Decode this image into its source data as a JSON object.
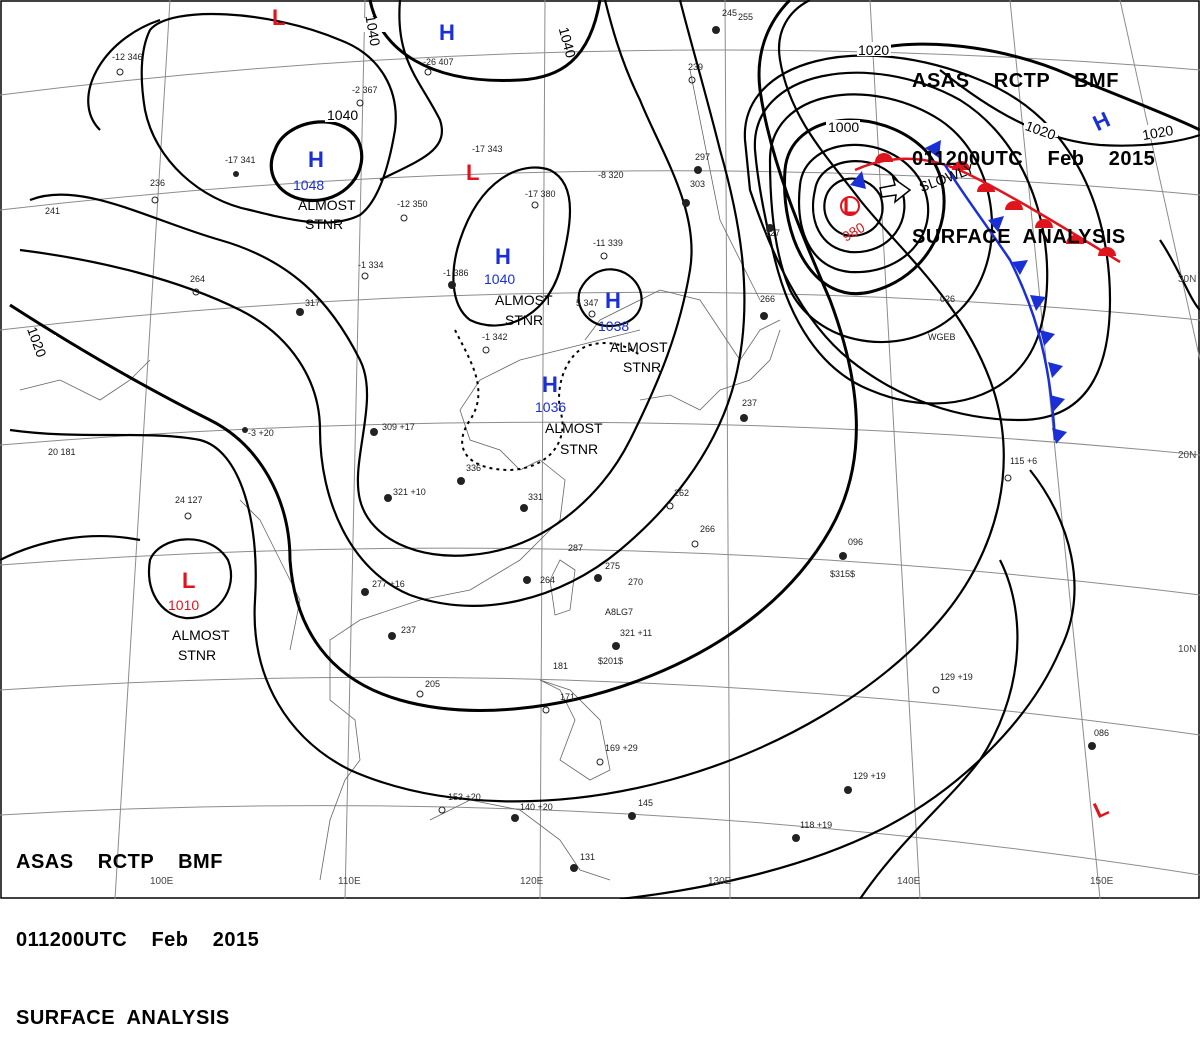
{
  "header": {
    "line1": "ASAS    RCTP    BMF",
    "line2": "011200UTC    Feb    2015",
    "line3": "SURFACE  ANALYSIS"
  },
  "colors": {
    "high": "#1a2fd6",
    "low": "#e0141c",
    "warm_front": "#e0141c",
    "cold_front": "#1a2fd6",
    "isobar": "#000000",
    "grid": "#8c8c8c"
  },
  "grid_labels": {
    "lon": [
      "110E",
      "120E",
      "130E",
      "140E",
      "150E"
    ],
    "lat": [
      "30N",
      "20N",
      "10N"
    ]
  },
  "isobar_labels": [
    "1040",
    "1040",
    "1040",
    "1040",
    "1020",
    "1020",
    "1020",
    "1020",
    "1000"
  ],
  "systems": [
    {
      "type": "H",
      "pressure": "1048",
      "status": "ALMOST",
      "status2": "STNR"
    },
    {
      "type": "H",
      "pressure": "1040",
      "status": "ALMOST",
      "status2": "STNR"
    },
    {
      "type": "H",
      "pressure": "1038",
      "status": "ALMOST",
      "status2": "STNR"
    },
    {
      "type": "H",
      "pressure": "1036",
      "status": "ALMOST",
      "status2": "STNR"
    },
    {
      "type": "L",
      "pressure": "1010",
      "status": "ALMOST",
      "status2": "STNR"
    },
    {
      "type": "L",
      "pressure": "980",
      "status": "SLOWLY",
      "status2": ""
    },
    {
      "type": "H",
      "pressure": "",
      "status": "",
      "status2": ""
    },
    {
      "type": "H",
      "pressure": "",
      "status": "",
      "status2": ""
    },
    {
      "type": "L",
      "pressure": "",
      "status": "",
      "status2": ""
    },
    {
      "type": "L",
      "pressure": "",
      "status": "",
      "status2": ""
    },
    {
      "type": "L",
      "pressure": "",
      "status": "",
      "status2": ""
    }
  ],
  "observations": [
    "-26 407",
    "-12 346",
    "-17 341",
    "-2 367",
    "-12 350",
    "-17 343",
    "-17 380",
    "-8 320",
    "-11 339",
    "-1 334",
    "-1 386",
    "-1 342",
    "5 347",
    "20 181",
    "24 127",
    "309 +17",
    "336",
    "321 +10",
    "331",
    "287",
    "275",
    "264",
    "270",
    "321 +11",
    "277 +16",
    "237",
    "205",
    "181",
    "171",
    "169 +29",
    "153 +20",
    "145",
    "140 +20",
    "131",
    "118 +19",
    "129 +19",
    "129 +19",
    "115 +6",
    "086",
    "096",
    "026",
    "WGEB",
    "A8LG7",
    "$201$",
    "$315$",
    "266",
    "262",
    "266",
    "237",
    "227",
    "255",
    "297",
    "303",
    "239",
    "245",
    "236",
    "241",
    "264",
    "317",
    "-3 +20"
  ]
}
